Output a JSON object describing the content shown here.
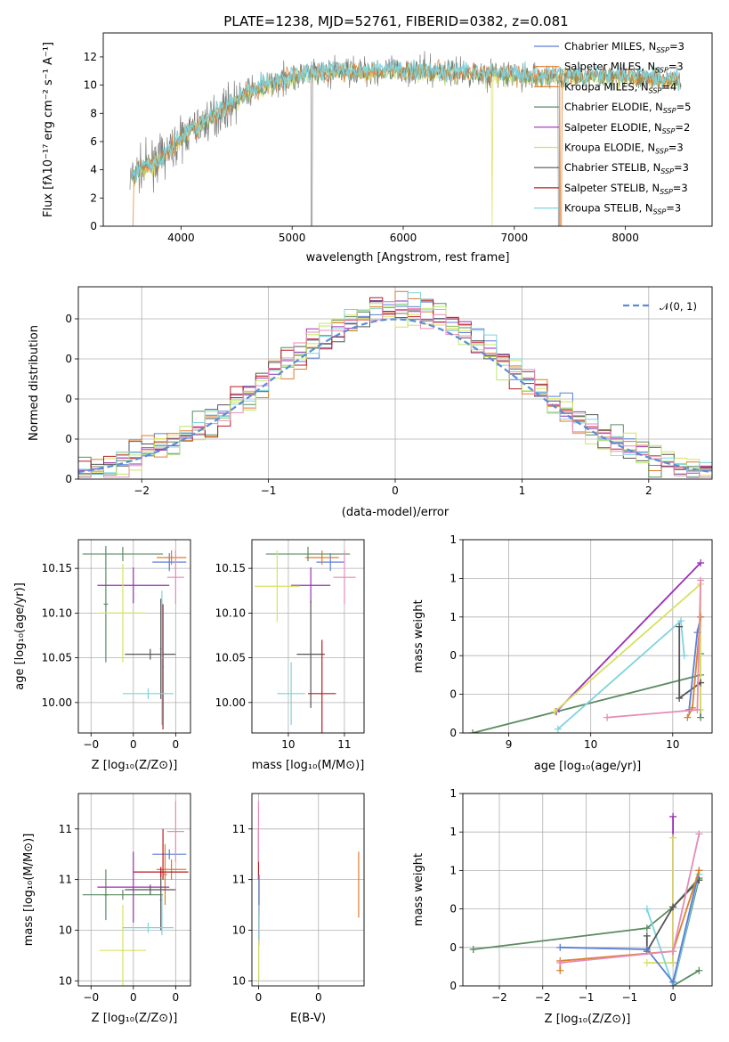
{
  "figure": {
    "title": "PLATE=1238, MJD=52761, FIBERID=0382, z=0.081"
  },
  "colors": {
    "Chabrier MILES": "#5b7fd6",
    "Salpeter MILES": "#e07a2c",
    "Kroupa MILES": "#d9822b",
    "Chabrier ELODIE": "#5a8a60",
    "Salpeter ELODIE": "#9a2fb5",
    "Kroupa ELODIE": "#d8e060",
    "Chabrier STELIB": "#555555",
    "Salpeter STELIB": "#b81d24",
    "Kroupa STELIB": "#7fd3dd",
    "ggreen": "#b7e870",
    "gpink": "#e68bb8"
  },
  "chart_data": [
    {
      "type": "line",
      "id": "spectrum",
      "xlabel": "wavelength [Angstrom, rest frame]",
      "ylabel": "Flux [fλ10⁻¹⁷ erg cm⁻² s⁻¹ A⁻¹]",
      "xlim": [
        3300,
        8780
      ],
      "ylim": [
        0,
        13.7
      ],
      "xticks": [
        4000,
        5000,
        6000,
        7000,
        8000
      ],
      "yticks": [
        0,
        2,
        4,
        6,
        8,
        10,
        12
      ],
      "legend_position": "top-right",
      "legend": [
        {
          "label": "Chabrier MILES, N",
          "sub": "SSP",
          "suffix": "=3",
          "color": "#5b7fd6"
        },
        {
          "label": "Salpeter MILES, N",
          "sub": "SSP",
          "suffix": "=3",
          "color": "#e07a2c"
        },
        {
          "label": "Kroupa MILES, N",
          "sub": "SSP",
          "suffix": "=4",
          "color": "#d9822b"
        },
        {
          "label": "Chabrier ELODIE, N",
          "sub": "SSP",
          "suffix": "=5",
          "color": "#5a8a60"
        },
        {
          "label": "Salpeter ELODIE, N",
          "sub": "SSP",
          "suffix": "=2",
          "color": "#9a2fb5"
        },
        {
          "label": "Kroupa ELODIE, N",
          "sub": "SSP",
          "suffix": "=3",
          "color": "#d8e060"
        },
        {
          "label": "Chabrier STELIB, N",
          "sub": "SSP",
          "suffix": "=3",
          "color": "#555555"
        },
        {
          "label": "Salpeter STELIB, N",
          "sub": "SSP",
          "suffix": "=3",
          "color": "#b81d24"
        },
        {
          "label": "Kroupa STELIB, N",
          "sub": "SSP",
          "suffix": "=3",
          "color": "#7fd3dd"
        }
      ],
      "continuum": {
        "x": [
          3540,
          3600,
          3700,
          3800,
          3900,
          4000,
          4100,
          4200,
          4300,
          4400,
          4500,
          4600,
          4700,
          4800,
          4900,
          5000,
          5100,
          5200,
          5300,
          5400,
          5500,
          5600,
          5700,
          5800,
          5900,
          6000,
          6200,
          6400,
          6600,
          6800,
          7000,
          7200,
          7400,
          7600,
          7800,
          8000,
          8200,
          8400,
          8500
        ],
        "y": [
          3.3,
          3.8,
          4.3,
          4.7,
          5.4,
          6.2,
          6.9,
          7.3,
          7.8,
          8.4,
          9.0,
          9.5,
          9.8,
          10.1,
          10.3,
          10.6,
          10.7,
          10.8,
          10.9,
          11.0,
          11.0,
          11.0,
          11.0,
          11.0,
          11.0,
          11.0,
          11.0,
          10.9,
          10.9,
          10.8,
          10.7,
          10.6,
          10.6,
          10.6,
          10.6,
          10.6,
          10.5,
          10.4,
          10.3
        ]
      }
    },
    {
      "type": "bar",
      "id": "residuals",
      "xlabel": "(data-model)/error",
      "ylabel": "Normed distribution",
      "xlim": [
        -2.5,
        2.5
      ],
      "ylim": [
        0,
        0.48
      ],
      "xticks": [
        -2,
        -1,
        0,
        1,
        2
      ],
      "yticks": [
        0.0,
        0.1,
        0.2,
        0.3,
        0.4
      ],
      "legend_position": "top-right",
      "reference_label": "𝒩(0, 1)",
      "bin_width": 0.1
    },
    {
      "type": "scatter",
      "id": "age-vs-z",
      "xlabel": "Z [log₁₀(Z/Z⊙)]",
      "ylabel": "age  [log₁₀(age/yr)]",
      "xlim": [
        -0.26,
        0.27
      ],
      "ylim": [
        9.966,
        10.182
      ],
      "xticks": [
        -0.2,
        0.0,
        0.2
      ],
      "yticks": [
        10.0,
        10.05,
        10.1,
        10.15
      ],
      "points": [
        {
          "name": "Chabrier MILES",
          "x": 0.17,
          "y": 10.157,
          "xerr": 0.08,
          "yerr": 0.01,
          "color": "#5b7fd6"
        },
        {
          "name": "Salpeter MILES",
          "x": 0.18,
          "y": 10.162,
          "xerr": 0.07,
          "yerr": 0.008,
          "color": "#e07a2c"
        },
        {
          "name": "Chabrier ELODIE",
          "x": -0.05,
          "y": 10.166,
          "xerr": 0.19,
          "yerr": 0.008,
          "color": "#5a8a60"
        },
        {
          "name": "Chabrier ELODIE b",
          "x": -0.13,
          "y": 10.11,
          "xerr": 0.01,
          "yerr": 0.065,
          "color": "#5a8a60"
        },
        {
          "name": "Salpeter ELODIE",
          "x": 0.0,
          "y": 10.131,
          "xerr": 0.17,
          "yerr": 0.02,
          "color": "#9a2fb5"
        },
        {
          "name": "Kroupa ELODIE",
          "x": -0.05,
          "y": 10.1,
          "xerr": 0.11,
          "yerr": 0.055,
          "color": "#d8e060"
        },
        {
          "name": "Chabrier STELIB",
          "x": 0.08,
          "y": 10.054,
          "xerr": 0.12,
          "yerr": 0.006,
          "color": "#555555"
        },
        {
          "name": "Chabrier STELIB b",
          "x": 0.13,
          "y": 10.06,
          "xerr": 0.004,
          "yerr": 0.056,
          "color": "#555555"
        },
        {
          "name": "Salpeter STELIB",
          "x": 0.14,
          "y": 10.04,
          "xerr": 0.003,
          "yerr": 0.07,
          "color": "#b81d24"
        },
        {
          "name": "Kroupa STELIB",
          "x": 0.07,
          "y": 10.01,
          "xerr": 0.12,
          "yerr": 0.006,
          "color": "#7fd3dd"
        },
        {
          "name": "Kroupa STELIB b",
          "x": 0.135,
          "y": 10.05,
          "xerr": 0.004,
          "yerr": 0.075,
          "color": "#7fd3dd"
        },
        {
          "name": "pink",
          "x": 0.2,
          "y": 10.14,
          "xerr": 0.04,
          "yerr": 0.03,
          "color": "#e68bb8"
        }
      ]
    },
    {
      "type": "scatter",
      "id": "age-vs-mass",
      "xlabel": "mass [log₁₀(M/M⊙)]",
      "ylabel": "",
      "xlim": [
        10.27,
        10.67
      ],
      "ylim": [
        9.966,
        10.182
      ],
      "xticks": [
        10.4,
        10.6
      ],
      "yticks": [
        10.0,
        10.05,
        10.1,
        10.15
      ],
      "points": [
        {
          "name": "Chabrier MILES",
          "x": 10.55,
          "y": 10.157,
          "xerr": 0.05,
          "yerr": 0.01,
          "color": "#5b7fd6"
        },
        {
          "name": "Salpeter MILES",
          "x": 10.52,
          "y": 10.162,
          "xerr": 0.06,
          "yerr": 0.008,
          "color": "#e07a2c"
        },
        {
          "name": "Chabrier ELODIE",
          "x": 10.47,
          "y": 10.166,
          "xerr": 0.15,
          "yerr": 0.008,
          "color": "#5a8a60"
        },
        {
          "name": "Salpeter ELODIE",
          "x": 10.48,
          "y": 10.131,
          "xerr": 0.07,
          "yerr": 0.02,
          "color": "#9a2fb5"
        },
        {
          "name": "Kroupa ELODIE",
          "x": 10.36,
          "y": 10.13,
          "xerr": 0.08,
          "yerr": 0.04,
          "color": "#d8e060"
        },
        {
          "name": "Chabrier STELIB",
          "x": 10.48,
          "y": 10.054,
          "xerr": 0.05,
          "yerr": 0.06,
          "color": "#555555"
        },
        {
          "name": "Salpeter STELIB",
          "x": 10.52,
          "y": 10.01,
          "xerr": 0.05,
          "yerr": 0.06,
          "color": "#b81d24"
        },
        {
          "name": "Kroupa STELIB",
          "x": 10.41,
          "y": 10.01,
          "xerr": 0.05,
          "yerr": 0.035,
          "color": "#7fd3dd"
        },
        {
          "name": "pink",
          "x": 10.6,
          "y": 10.14,
          "xerr": 0.04,
          "yerr": 0.03,
          "color": "#e68bb8"
        }
      ]
    },
    {
      "type": "line",
      "id": "weight-vs-age",
      "xlabel": "age  [log₁₀(age/yr)]",
      "ylabel": "mass weight",
      "xlim": [
        8.72,
        10.24
      ],
      "ylim": [
        0,
        1.0
      ],
      "xticks": [
        9.0,
        9.5,
        10.0
      ],
      "yticks": [
        0.0,
        0.2,
        0.4,
        0.6,
        0.8,
        1.0
      ],
      "series": [
        {
          "name": "Chabrier ELODIE",
          "color": "#5a8a60",
          "x": [
            8.78,
            10.17,
            10.17,
            10.17
          ],
          "y": [
            0.0,
            0.3,
            0.41,
            0.08
          ]
        },
        {
          "name": "Salpeter ELODIE",
          "color": "#9a2fb5",
          "x": [
            9.29,
            10.17
          ],
          "y": [
            0.11,
            0.88
          ]
        },
        {
          "name": "Kroupa ELODIE",
          "color": "#d8e060",
          "x": [
            9.28,
            10.17,
            10.17
          ],
          "y": [
            0.11,
            0.77,
            0.12
          ]
        },
        {
          "name": "Kroupa STELIB",
          "color": "#7fd3dd",
          "x": [
            9.3,
            10.05,
            10.07
          ],
          "y": [
            0.02,
            0.58,
            0.4
          ]
        },
        {
          "name": "Chabrier STELIB",
          "color": "#555555",
          "x": [
            10.04,
            10.04,
            10.17
          ],
          "y": [
            0.55,
            0.18,
            0.26
          ]
        },
        {
          "name": "Chabrier MILES",
          "color": "#5b7fd6",
          "x": [
            10.1,
            10.15,
            10.17
          ],
          "y": [
            0.12,
            0.52,
            0.6
          ]
        },
        {
          "name": "Kroupa MILES",
          "color": "#d9822b",
          "x": [
            10.09,
            10.12,
            10.17
          ],
          "y": [
            0.08,
            0.13,
            0.6
          ]
        },
        {
          "name": "pink",
          "color": "#e68bb8",
          "x": [
            9.6,
            10.15,
            10.17
          ],
          "y": [
            0.08,
            0.12,
            0.79
          ]
        }
      ]
    },
    {
      "type": "scatter",
      "id": "mass-vs-z",
      "xlabel": "Z [log₁₀(Z/Z⊙)]",
      "ylabel": "mass [log₁₀(M/M⊙)]",
      "xlim": [
        -0.26,
        0.27
      ],
      "ylim": [
        10.29,
        10.67
      ],
      "xticks": [
        -0.2,
        0.0,
        0.2
      ],
      "yticks": [
        10.3,
        10.4,
        10.5,
        10.6
      ],
      "points": [
        {
          "name": "Chabrier MILES",
          "x": 0.17,
          "y": 10.55,
          "xerr": 0.08,
          "yerr": 0.01,
          "color": "#5b7fd6"
        },
        {
          "name": "Salpeter MILES",
          "x": 0.18,
          "y": 10.52,
          "xerr": 0.07,
          "yerr": 0.02,
          "color": "#e07a2c"
        },
        {
          "name": "Kroupa MILES",
          "x": 0.15,
          "y": 10.51,
          "xerr": 0.01,
          "yerr": 0.06,
          "color": "#d9822b"
        },
        {
          "name": "Chabrier ELODIE",
          "x": -0.05,
          "y": 10.47,
          "xerr": 0.19,
          "yerr": 0.01,
          "color": "#5a8a60"
        },
        {
          "name": "Chabrier ELODIE b",
          "x": -0.13,
          "y": 10.47,
          "xerr": 0.01,
          "yerr": 0.05,
          "color": "#5a8a60"
        },
        {
          "name": "Salpeter ELODIE",
          "x": 0.0,
          "y": 10.485,
          "xerr": 0.17,
          "yerr": 0.07,
          "color": "#9a2fb5"
        },
        {
          "name": "Kroupa ELODIE",
          "x": -0.05,
          "y": 10.36,
          "xerr": 0.11,
          "yerr": 0.09,
          "color": "#d8e060"
        },
        {
          "name": "Chabrier STELIB",
          "x": 0.08,
          "y": 10.48,
          "xerr": 0.12,
          "yerr": 0.01,
          "color": "#555555"
        },
        {
          "name": "Chabrier STELIB b",
          "x": 0.13,
          "y": 10.46,
          "xerr": 0.004,
          "yerr": 0.06,
          "color": "#555555"
        },
        {
          "name": "Salpeter STELIB",
          "x": 0.13,
          "y": 10.515,
          "xerr": 0.13,
          "yerr": 0.01,
          "color": "#b81d24"
        },
        {
          "name": "Salpeter STELIB b",
          "x": 0.14,
          "y": 10.55,
          "xerr": 0.003,
          "yerr": 0.05,
          "color": "#b81d24"
        },
        {
          "name": "Kroupa STELIB",
          "x": 0.07,
          "y": 10.405,
          "xerr": 0.12,
          "yerr": 0.01,
          "color": "#7fd3dd"
        },
        {
          "name": "Kroupa STELIB b",
          "x": 0.135,
          "y": 10.43,
          "xerr": 0.004,
          "yerr": 0.04,
          "color": "#7fd3dd"
        },
        {
          "name": "pink",
          "x": 0.2,
          "y": 10.595,
          "xerr": 0.04,
          "yerr": 0.06,
          "color": "#e68bb8"
        }
      ]
    },
    {
      "type": "scatter",
      "id": "mass-vs-ebv",
      "xlabel": "E(B-V)",
      "ylabel": "",
      "xlim": [
        -0.00022,
        0.00352
      ],
      "ylim": [
        10.29,
        10.67
      ],
      "xticks": [
        0.0,
        0.002
      ],
      "yticks": [
        10.3,
        10.4,
        10.5,
        10.6
      ],
      "points": [
        {
          "name": "Salpeter STELIB",
          "x": 0.0,
          "y": 10.55,
          "xerr": 1e-05,
          "yerr": 0.05,
          "color": "#b81d24"
        },
        {
          "name": "pink",
          "x": 0.0,
          "y": 10.595,
          "xerr": 1e-05,
          "yerr": 0.06,
          "color": "#e68bb8"
        },
        {
          "name": "Chabrier MILES",
          "x": 2e-05,
          "y": 10.47,
          "xerr": 1e-05,
          "yerr": 0.04,
          "color": "#5b7fd6"
        },
        {
          "name": "Kroupa STELIB",
          "x": 2e-05,
          "y": 10.41,
          "xerr": 1e-05,
          "yerr": 0.04,
          "color": "#7fd3dd"
        },
        {
          "name": "Kroupa ELODIE",
          "x": 1e-05,
          "y": 10.34,
          "xerr": 1e-05,
          "yerr": 0.04,
          "color": "#d8e060"
        },
        {
          "name": "Salpeter MILES",
          "x": 0.00334,
          "y": 10.49,
          "xerr": 1e-05,
          "yerr": 0.065,
          "color": "#e07a2c"
        }
      ]
    },
    {
      "type": "line",
      "id": "weight-vs-z",
      "xlabel": "Z [log₁₀(Z/Z⊙)]",
      "ylabel": "mass weight",
      "xlim": [
        -2.42,
        0.45
      ],
      "ylim": [
        0,
        1.0
      ],
      "xticks": [
        -2.0,
        -1.5,
        -1.0,
        -0.5,
        0.0
      ],
      "yticks": [
        0.0,
        0.2,
        0.4,
        0.6,
        0.8,
        1.0
      ],
      "series": [
        {
          "name": "Chabrier ELODIE",
          "color": "#5a8a60",
          "x": [
            -2.3,
            -0.3,
            0.0,
            0.3,
            0.0,
            0.3
          ],
          "y": [
            0.19,
            0.3,
            0.41,
            0.56,
            0.0,
            0.08
          ]
        },
        {
          "name": "Salpeter ELODIE",
          "color": "#9a2fb5",
          "x": [
            0.0,
            0.0
          ],
          "y": [
            0.88,
            0.12
          ]
        },
        {
          "name": "Kroupa ELODIE",
          "color": "#d8e060",
          "x": [
            0.0,
            0.0,
            -0.3
          ],
          "y": [
            0.77,
            0.12,
            0.12
          ]
        },
        {
          "name": "Kroupa STELIB",
          "color": "#7fd3dd",
          "x": [
            -0.3,
            0.0,
            0.3
          ],
          "y": [
            0.4,
            0.0,
            0.58
          ]
        },
        {
          "name": "Chabrier STELIB",
          "color": "#555555",
          "x": [
            -0.3,
            -0.3,
            0.0,
            0.3
          ],
          "y": [
            0.26,
            0.18,
            0.41,
            0.55
          ]
        },
        {
          "name": "Chabrier MILES",
          "color": "#5b7fd6",
          "x": [
            -1.3,
            -0.3,
            0.0,
            0.3
          ],
          "y": [
            0.2,
            0.19,
            0.02,
            0.6
          ]
        },
        {
          "name": "Kroupa MILES",
          "color": "#d9822b",
          "x": [
            -1.3,
            -1.3,
            0.0,
            0.3
          ],
          "y": [
            0.08,
            0.13,
            0.18,
            0.6
          ]
        },
        {
          "name": "pink",
          "color": "#e68bb8",
          "x": [
            -1.3,
            0.0,
            0.3
          ],
          "y": [
            0.12,
            0.18,
            0.79
          ]
        }
      ]
    }
  ]
}
